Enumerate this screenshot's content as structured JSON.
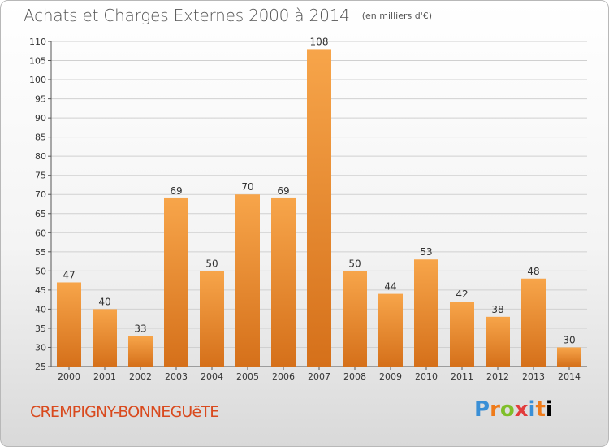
{
  "header": {
    "title": "Achats et Charges Externes 2000 à 2014",
    "unit": "(en milliers d'€)"
  },
  "footer": {
    "commune": "CREMPIGNY-BONNEGUëTE",
    "logo_letters": [
      "P",
      "r",
      "o",
      "x",
      "i",
      "t",
      "i"
    ]
  },
  "colors": {
    "bar_light": "#f7a54a",
    "bar_dark": "#d5701a",
    "grid": "#d0d0d0",
    "commune": "#d94a1e"
  },
  "chart_data": {
    "type": "bar",
    "title": "Achats et Charges Externes 2000 à 2014",
    "subtitle": "(en milliers d'€)",
    "categories": [
      "2000",
      "2001",
      "2002",
      "2003",
      "2004",
      "2005",
      "2006",
      "2007",
      "2008",
      "2009",
      "2010",
      "2011",
      "2012",
      "2013",
      "2014"
    ],
    "values": [
      47,
      40,
      33,
      69,
      50,
      70,
      69,
      108,
      50,
      44,
      53,
      42,
      38,
      48,
      30
    ],
    "ylim": [
      25,
      110
    ],
    "yticks": [
      25,
      30,
      35,
      40,
      45,
      50,
      55,
      60,
      65,
      70,
      75,
      80,
      85,
      90,
      95,
      100,
      105,
      110
    ],
    "grid": true,
    "xlabel": "",
    "ylabel": ""
  }
}
